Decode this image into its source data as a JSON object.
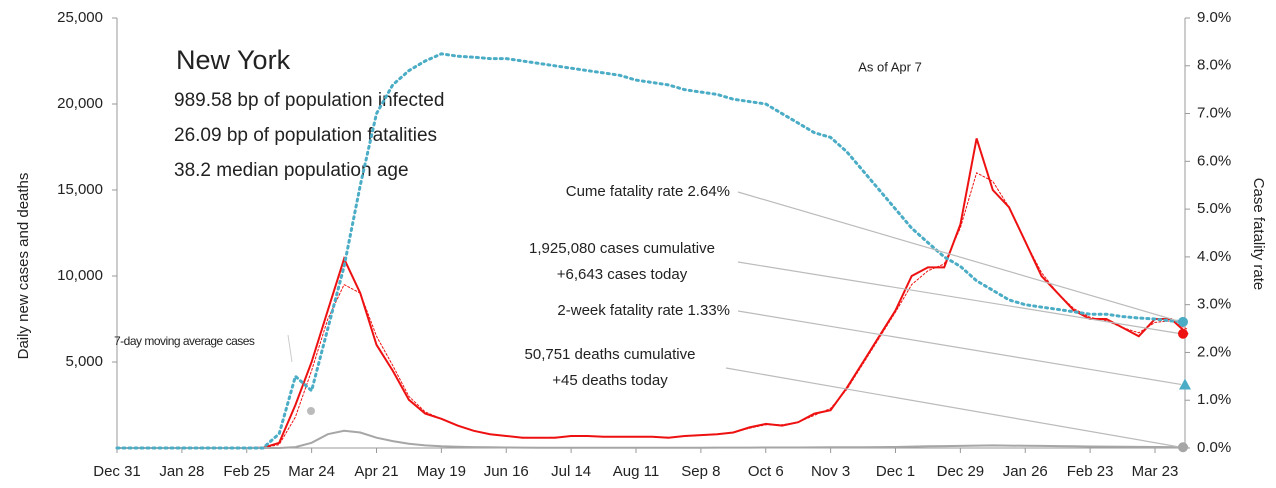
{
  "chart_data": {
    "type": "line",
    "categories": [
      "Dec 31",
      null,
      null,
      null,
      "Jan 28",
      null,
      null,
      null,
      "Feb 25",
      null,
      null,
      null,
      "Mar 24",
      null,
      null,
      null,
      "Apr 21",
      null,
      null,
      null,
      "May 19",
      null,
      null,
      null,
      "Jun 16",
      null,
      null,
      null,
      "Jul 14",
      null,
      null,
      null,
      "Aug 11",
      null,
      null,
      null,
      "Sep 8",
      null,
      null,
      null,
      "Oct 6",
      null,
      null,
      null,
      "Nov 3",
      null,
      null,
      null,
      "Dec 1",
      null,
      null,
      null,
      "Dec 29",
      null,
      null,
      null,
      "Jan 26",
      null,
      null,
      null,
      "Feb 23",
      null,
      null,
      null,
      "Mar 23",
      null,
      null
    ],
    "series": [
      {
        "color": "#ee1111",
        "width": 2,
        "dashed": false,
        "values": [
          0,
          0,
          0,
          0,
          0,
          0,
          0,
          0,
          0,
          10,
          300,
          2500,
          5000,
          8000,
          11000,
          9000,
          6000,
          4500,
          2800,
          2000,
          1700,
          1300,
          1000,
          800,
          700,
          600,
          600,
          600,
          700,
          700,
          650,
          650,
          650,
          650,
          600,
          700,
          750,
          800,
          900,
          1200,
          1400,
          1300,
          1500,
          2000,
          2200,
          3500,
          5000,
          6500,
          8000,
          10000,
          10500,
          10500,
          13000,
          18000,
          15000,
          14000,
          12000,
          10000,
          9000,
          8000,
          7500,
          7500,
          7000,
          6500,
          7500,
          7500,
          6643
        ]
      },
      {
        "name": "7-day moving average cases",
        "color": "#ee1111",
        "width": 1,
        "dashed": true,
        "values": [
          0,
          0,
          0,
          0,
          0,
          0,
          0,
          0,
          0,
          5,
          200,
          1800,
          4500,
          7500,
          9500,
          9000,
          6500,
          4800,
          3000,
          2100,
          1700,
          1300,
          1000,
          800,
          700,
          620,
          600,
          620,
          680,
          690,
          660,
          650,
          650,
          640,
          620,
          680,
          740,
          800,
          900,
          1150,
          1350,
          1350,
          1500,
          1900,
          2300,
          3400,
          4900,
          6400,
          7900,
          9500,
          10300,
          10700,
          12800,
          16000,
          15500,
          14000,
          12000,
          10200,
          9000,
          8100,
          7600,
          7400,
          7000,
          6700,
          7300,
          7400,
          6900
        ]
      },
      {
        "color": "#a6a6a6",
        "width": 2,
        "dashed": false,
        "values": [
          0,
          0,
          0,
          0,
          0,
          0,
          0,
          0,
          0,
          0,
          0,
          50,
          300,
          800,
          1000,
          900,
          600,
          400,
          250,
          150,
          100,
          70,
          50,
          40,
          30,
          25,
          20,
          20,
          20,
          20,
          20,
          20,
          20,
          20,
          20,
          20,
          20,
          25,
          25,
          25,
          30,
          30,
          30,
          35,
          40,
          40,
          45,
          55,
          60,
          80,
          100,
          110,
          120,
          140,
          150,
          140,
          130,
          120,
          110,
          100,
          90,
          80,
          70,
          65,
          60,
          50,
          45
        ]
      },
      {
        "color": "#4bacc6",
        "width": 3,
        "dashed": true,
        "axis": "y2",
        "values": [
          0,
          0,
          0,
          0,
          0,
          0,
          0,
          0,
          0,
          0,
          0.3,
          1.5,
          1.2,
          2.5,
          3.8,
          5.5,
          7.0,
          7.6,
          7.9,
          8.1,
          8.25,
          8.2,
          8.18,
          8.15,
          8.15,
          8.1,
          8.05,
          8.0,
          7.95,
          7.9,
          7.85,
          7.8,
          7.7,
          7.65,
          7.6,
          7.5,
          7.45,
          7.4,
          7.3,
          7.25,
          7.2,
          7.0,
          6.8,
          6.6,
          6.5,
          6.2,
          5.8,
          5.4,
          5.0,
          4.6,
          4.3,
          4.0,
          3.8,
          3.5,
          3.3,
          3.1,
          3.0,
          2.95,
          2.9,
          2.85,
          2.8,
          2.8,
          2.75,
          2.72,
          2.7,
          2.66,
          2.64
        ]
      }
    ],
    "ylim": [
      0,
      25000
    ],
    "yticks": [
      {
        "value": 5000,
        "label": "5,000"
      },
      {
        "value": 10000,
        "label": "10,000"
      },
      {
        "value": 15000,
        "label": "15,000"
      },
      {
        "value": 20000,
        "label": "20,000"
      },
      {
        "value": 25000,
        "label": "25,000"
      }
    ],
    "y2lim": [
      0,
      9
    ],
    "y2ticks": [
      {
        "value": 0,
        "label": "0.0%"
      },
      {
        "value": 1,
        "label": "1.0%"
      },
      {
        "value": 2,
        "label": "2.0%"
      },
      {
        "value": 3,
        "label": "3.0%"
      },
      {
        "value": 4,
        "label": "4.0%"
      },
      {
        "value": 5,
        "label": "5.0%"
      },
      {
        "value": 6,
        "label": "6.0%"
      },
      {
        "value": 7,
        "label": "7.0%"
      },
      {
        "value": 8,
        "label": "8.0%"
      },
      {
        "value": 9,
        "label": "9.0%"
      }
    ],
    "ylabel": "Daily new cases and deaths",
    "y2label": "Case fatality rate",
    "y2color": "#4bacc6",
    "title": "New York",
    "info": [
      "989.58 bp of population infected",
      "26.09 bp of population fatalities",
      "38.2 median population age"
    ],
    "as_of": "As of Apr 7",
    "callouts": [
      {
        "lines": [
          "Cume fatality rate 2.64%"
        ],
        "value": 2.64,
        "axis": "y2",
        "marker": "circle",
        "color": "#4bacc6"
      },
      {
        "lines": [
          "1,925,080 cases cumulative",
          "+6,643 cases today"
        ],
        "value": 6643,
        "marker": "circle",
        "color": "#ee1111"
      },
      {
        "lines": [
          "2-week fatality rate 1.33%"
        ],
        "value": 1.33,
        "axis": "y2",
        "marker": "triangle",
        "color": "#4bacc6"
      },
      {
        "lines": [
          "50,751 deaths cumulative",
          "+45 deaths today"
        ],
        "value": 45,
        "marker": "circle",
        "color": "#a6a6a6"
      }
    ]
  }
}
